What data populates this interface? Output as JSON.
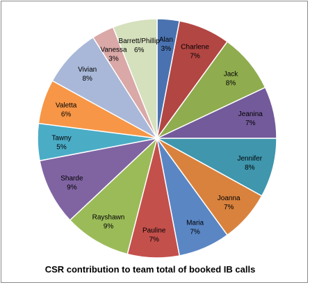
{
  "chart_data": {
    "type": "pie",
    "title": "CSR contribution to team total of booked IB calls",
    "slices": [
      {
        "label": "Alan",
        "percent_label": "3%",
        "value": 3,
        "color": "#4a72b0"
      },
      {
        "label": "Charlene",
        "percent_label": "7%",
        "value": 7,
        "color": "#b24643"
      },
      {
        "label": "Jack",
        "percent_label": "8%",
        "value": 8,
        "color": "#8fac4f"
      },
      {
        "label": "Jeanina",
        "percent_label": "7%",
        "value": 7,
        "color": "#735a9a"
      },
      {
        "label": "Jennifer",
        "percent_label": "8%",
        "value": 8,
        "color": "#3f96ad"
      },
      {
        "label": "Joanna",
        "percent_label": "7%",
        "value": 7,
        "color": "#d9823d"
      },
      {
        "label": "Maria",
        "percent_label": "7%",
        "value": 7,
        "color": "#5a86c4"
      },
      {
        "label": "Pauline",
        "percent_label": "7%",
        "value": 7,
        "color": "#c4504c"
      },
      {
        "label": "Rayshawn",
        "percent_label": "9%",
        "value": 9,
        "color": "#9bbb59"
      },
      {
        "label": "Sharde",
        "percent_label": "9%",
        "value": 9,
        "color": "#8064a2"
      },
      {
        "label": "Tawny",
        "percent_label": "5%",
        "value": 5,
        "color": "#4bacc6"
      },
      {
        "label": "Valetta",
        "percent_label": "6%",
        "value": 6,
        "color": "#f79646"
      },
      {
        "label": "Vivian",
        "percent_label": "8%",
        "value": 8,
        "color": "#a9b8d8"
      },
      {
        "label": "Vanessa",
        "percent_label": "3%",
        "value": 3,
        "color": "#d9a8a7"
      },
      {
        "label": "Barrett/Phillip",
        "percent_label": "6%",
        "value": 6,
        "color": "#d5e0bd"
      }
    ]
  }
}
